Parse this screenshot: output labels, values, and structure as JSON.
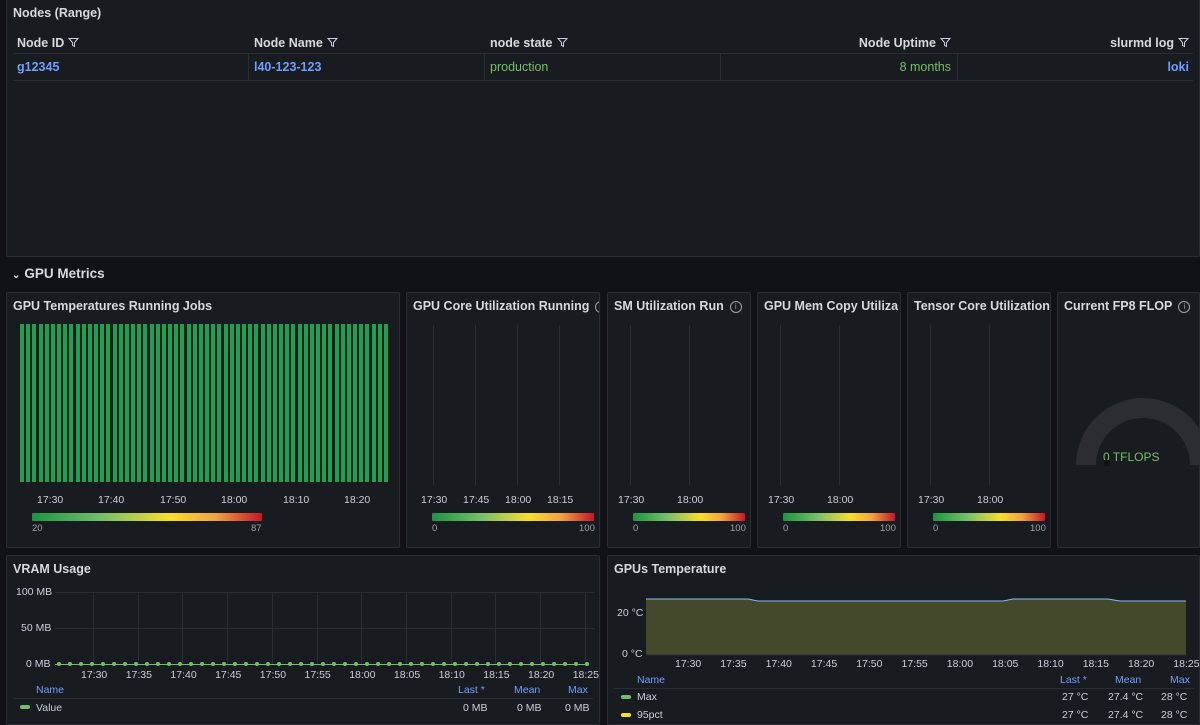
{
  "nodes_panel": {
    "title": "Nodes (Range)",
    "columns": [
      "Node ID",
      "Node Name",
      "node state",
      "Node Uptime",
      "slurmd log"
    ],
    "row": {
      "node_id": "g12345",
      "node_name": "l40-123-123",
      "node_state": "production",
      "uptime": "8 months",
      "log": "loki"
    }
  },
  "section": {
    "title": "GPU Metrics"
  },
  "gpu_temp_running": {
    "title": "GPU Temperatures Running Jobs",
    "ticks": [
      "17:30",
      "17:40",
      "17:50",
      "18:00",
      "18:10",
      "18:20"
    ],
    "scale_min": "20",
    "scale_max": "87"
  },
  "gpu_core_util": {
    "title": "GPU Core Utilization Running",
    "ticks": [
      "17:30",
      "17:45",
      "18:00",
      "18:15"
    ],
    "scale_min": "0",
    "scale_max": "100"
  },
  "sm_util": {
    "title": "SM Utilization Run",
    "ticks": [
      "17:30",
      "18:00"
    ],
    "scale_min": "0",
    "scale_max": "100"
  },
  "mem_copy": {
    "title": "GPU Mem Copy Utiliza",
    "ticks": [
      "17:30",
      "18:00"
    ],
    "scale_min": "0",
    "scale_max": "100"
  },
  "tensor_core": {
    "title": "Tensor Core Utilization",
    "ticks": [
      "17:30",
      "18:00"
    ],
    "scale_min": "0",
    "scale_max": "100"
  },
  "fp8": {
    "title": "Current FP8 FLOP",
    "value": "0 TFLOPS"
  },
  "vram": {
    "title": "VRAM Usage",
    "y_labels": [
      "100 MB",
      "50 MB",
      "0 MB"
    ],
    "ticks": [
      "17:30",
      "17:35",
      "17:40",
      "17:45",
      "17:50",
      "17:55",
      "18:00",
      "18:05",
      "18:10",
      "18:15",
      "18:20",
      "18:25"
    ],
    "legend_headers": {
      "name": "Name",
      "last": "Last *",
      "mean": "Mean",
      "max": "Max"
    },
    "series": {
      "name": "Value",
      "last": "0 MB",
      "mean": "0 MB",
      "max": "0 MB"
    }
  },
  "gpus_temp": {
    "title": "GPUs Temperature",
    "y_labels": [
      "20 °C",
      "0 °C"
    ],
    "ticks": [
      "17:30",
      "17:35",
      "17:40",
      "17:45",
      "17:50",
      "17:55",
      "18:00",
      "18:05",
      "18:10",
      "18:15",
      "18:20",
      "18:25"
    ],
    "legend_headers": {
      "name": "Name",
      "last": "Last *",
      "mean": "Mean",
      "max": "Max"
    },
    "series": [
      {
        "name": "Max",
        "last": "27 °C",
        "mean": "27.4 °C",
        "max": "28 °C"
      },
      {
        "name": "95pct",
        "last": "27 °C",
        "mean": "27.4 °C",
        "max": "28 °C"
      }
    ]
  },
  "colors": {
    "green": "#73bf69",
    "link": "#6e9fff",
    "bar": "#1ea04f",
    "yellow": "#fade2a"
  }
}
